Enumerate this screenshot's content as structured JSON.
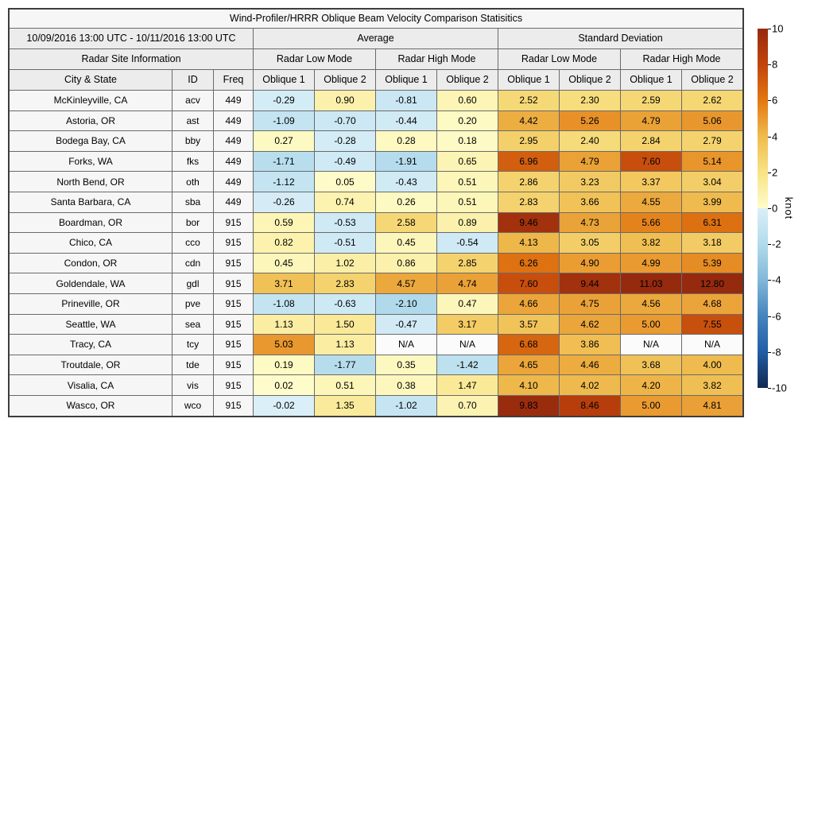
{
  "chart_data": {
    "type": "heatmap",
    "title": "Wind-Profiler/HRRR Oblique Beam Velocity Comparison Statisitics",
    "date_range": "10/09/2016 13:00 UTC - 10/11/2016 13:00 UTC",
    "group_headers": [
      "Average",
      "Standard Deviation"
    ],
    "site_info_header": "Radar Site Information",
    "mode_headers": [
      "Radar Low Mode",
      "Radar High Mode",
      "Radar Low Mode",
      "Radar High Mode"
    ],
    "column_headers": [
      "City & State",
      "ID",
      "Freq",
      "Oblique 1",
      "Oblique 2",
      "Oblique 1",
      "Oblique 2",
      "Oblique 1",
      "Oblique 2",
      "Oblique 1",
      "Oblique 2"
    ],
    "na_text": "N/A",
    "na_color": "#fbfbfb",
    "rows": [
      {
        "city": "McKinleyville, CA",
        "id": "acv",
        "freq": "449",
        "values": [
          -0.29,
          0.9,
          -0.81,
          0.6,
          2.52,
          2.3,
          2.59,
          2.62
        ]
      },
      {
        "city": "Astoria, OR",
        "id": "ast",
        "freq": "449",
        "values": [
          -1.09,
          -0.7,
          -0.44,
          0.2,
          4.42,
          5.26,
          4.79,
          5.06
        ]
      },
      {
        "city": "Bodega Bay, CA",
        "id": "bby",
        "freq": "449",
        "values": [
          0.27,
          -0.28,
          0.28,
          0.18,
          2.95,
          2.4,
          2.84,
          2.79
        ]
      },
      {
        "city": "Forks, WA",
        "id": "fks",
        "freq": "449",
        "values": [
          -1.71,
          -0.49,
          -1.91,
          0.65,
          6.96,
          4.79,
          7.6,
          5.14
        ]
      },
      {
        "city": "North Bend, OR",
        "id": "oth",
        "freq": "449",
        "values": [
          -1.12,
          0.05,
          -0.43,
          0.51,
          2.86,
          3.23,
          3.37,
          3.04
        ]
      },
      {
        "city": "Santa Barbara, CA",
        "id": "sba",
        "freq": "449",
        "values": [
          -0.26,
          0.74,
          0.26,
          0.51,
          2.83,
          3.66,
          4.55,
          3.99
        ]
      },
      {
        "city": "Boardman, OR",
        "id": "bor",
        "freq": "915",
        "values": [
          0.59,
          -0.53,
          2.58,
          0.89,
          9.46,
          4.73,
          5.66,
          6.31
        ]
      },
      {
        "city": "Chico, CA",
        "id": "cco",
        "freq": "915",
        "values": [
          0.82,
          -0.51,
          0.45,
          -0.54,
          4.13,
          3.05,
          3.82,
          3.18
        ]
      },
      {
        "city": "Condon, OR",
        "id": "cdn",
        "freq": "915",
        "values": [
          0.45,
          1.02,
          0.86,
          2.85,
          6.26,
          4.9,
          4.99,
          5.39
        ]
      },
      {
        "city": "Goldendale, WA",
        "id": "gdl",
        "freq": "915",
        "values": [
          3.71,
          2.83,
          4.57,
          4.74,
          7.6,
          9.44,
          11.03,
          12.8
        ]
      },
      {
        "city": "Prineville, OR",
        "id": "pve",
        "freq": "915",
        "values": [
          -1.08,
          -0.63,
          -2.1,
          0.47,
          4.66,
          4.75,
          4.56,
          4.68
        ]
      },
      {
        "city": "Seattle, WA",
        "id": "sea",
        "freq": "915",
        "values": [
          1.13,
          1.5,
          -0.47,
          3.17,
          3.57,
          4.62,
          5.0,
          7.55
        ]
      },
      {
        "city": "Tracy, CA",
        "id": "tcy",
        "freq": "915",
        "values": [
          5.03,
          1.13,
          null,
          null,
          6.68,
          3.86,
          null,
          null
        ]
      },
      {
        "city": "Troutdale, OR",
        "id": "tde",
        "freq": "915",
        "values": [
          0.19,
          -1.77,
          0.35,
          -1.42,
          4.65,
          4.46,
          3.68,
          4.0
        ]
      },
      {
        "city": "Visalia, CA",
        "id": "vis",
        "freq": "915",
        "values": [
          0.02,
          0.51,
          0.38,
          1.47,
          4.1,
          4.02,
          4.2,
          3.82
        ]
      },
      {
        "city": "Wasco, OR",
        "id": "wco",
        "freq": "915",
        "values": [
          -0.02,
          1.35,
          -1.02,
          0.7,
          9.83,
          8.46,
          5.0,
          4.81
        ]
      }
    ],
    "colorbar": {
      "unit_label": "knot",
      "min": -10,
      "max": 10,
      "ticks": [
        10,
        8,
        6,
        4,
        2,
        0,
        -2,
        -4,
        -6,
        -8,
        -10
      ],
      "positive_stops": [
        [
          0,
          "#fefccb"
        ],
        [
          2,
          "#f8e385"
        ],
        [
          4,
          "#efbb4e"
        ],
        [
          6,
          "#e27812"
        ],
        [
          8,
          "#c1440c"
        ],
        [
          10,
          "#962a0e"
        ]
      ],
      "negative_stops": [
        [
          0,
          "#daeff8"
        ],
        [
          -2,
          "#b2dbec"
        ],
        [
          -4,
          "#81b7d9"
        ],
        [
          -6,
          "#4484be"
        ],
        [
          -8,
          "#1f5ea6"
        ],
        [
          -10,
          "#13294f"
        ]
      ]
    }
  }
}
